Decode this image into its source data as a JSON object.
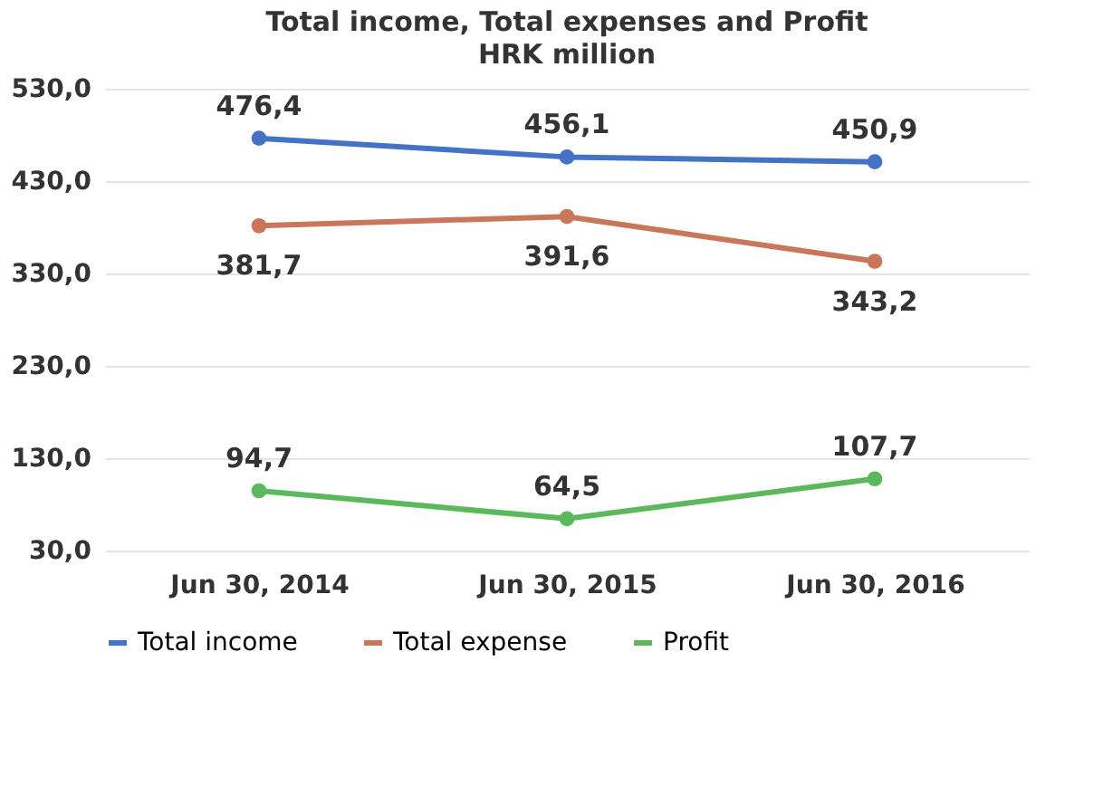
{
  "chart_data": {
    "type": "line",
    "title": "Total income, Total expenses and Profit",
    "subtitle": "HRK million",
    "categories": [
      "Jun 30, 2014",
      "Jun 30, 2015",
      "Jun 30, 2016"
    ],
    "series": [
      {
        "name": "Total income",
        "color": "#4472c4",
        "values": [
          476.4,
          456.1,
          450.9
        ],
        "value_labels": [
          "476,4",
          "456,1",
          "450,9"
        ]
      },
      {
        "name": "Total expense",
        "color": "#c8775a",
        "values": [
          381.7,
          391.6,
          343.2
        ],
        "value_labels": [
          "381,7",
          "391,6",
          "343,2"
        ]
      },
      {
        "name": "Profit",
        "color": "#5cb85c",
        "values": [
          94.7,
          64.5,
          107.7
        ],
        "value_labels": [
          "94,7",
          "64,5",
          "107,7"
        ]
      }
    ],
    "ylim": [
      30,
      530
    ],
    "yticks": [
      {
        "value": 30,
        "label": "30,0"
      },
      {
        "value": 130,
        "label": "130,0"
      },
      {
        "value": 230,
        "label": "230,0"
      },
      {
        "value": 330,
        "label": "330,0"
      },
      {
        "value": 430,
        "label": "430,0"
      },
      {
        "value": 530,
        "label": "530,0"
      }
    ],
    "grid": "y",
    "legend": "bottom",
    "marker": "circle",
    "line_style": "solid"
  }
}
